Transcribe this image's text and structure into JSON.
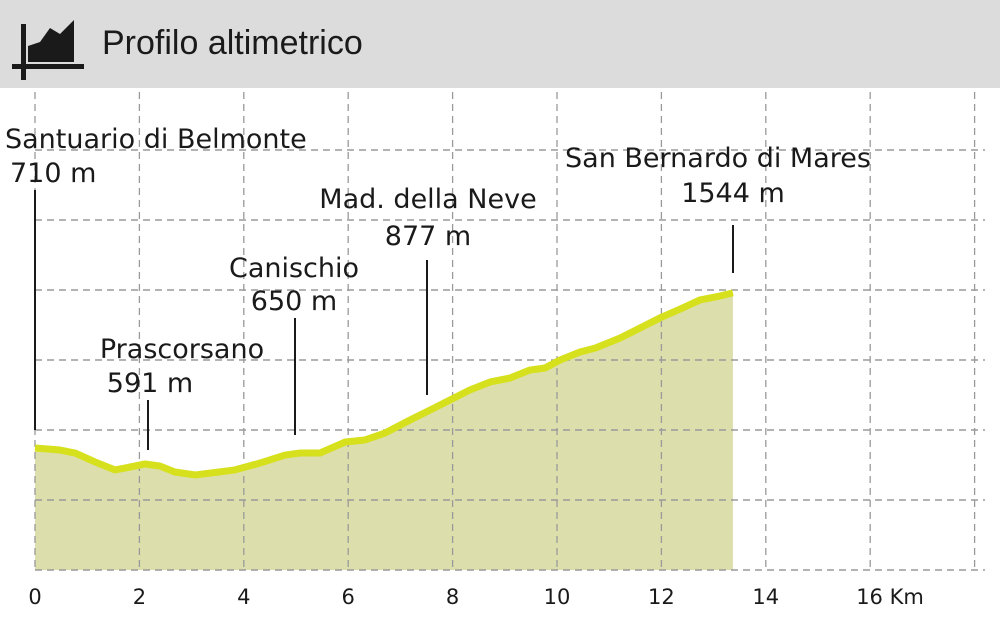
{
  "header": {
    "title": "Profilo altimetrico",
    "icon": "elevation-profile-icon"
  },
  "chart_data": {
    "type": "area",
    "title": "Profilo altimetrico",
    "xlabel": "",
    "ylabel": "",
    "x_unit": "Km",
    "xlim": [
      0,
      18
    ],
    "ylim": [
      54,
      2600
    ],
    "grid": true,
    "x_ticks": [
      0,
      2,
      4,
      6,
      8,
      10,
      12,
      14,
      16
    ],
    "x_tick_labels": [
      "0",
      "2",
      "4",
      "6",
      "8",
      "10",
      "12",
      "14",
      "16 Km"
    ],
    "line_color": "#d6e01c",
    "fill_color": "#dcdeab",
    "profile": [
      [
        0,
        710
      ],
      [
        0.48,
        699
      ],
      [
        0.77,
        683
      ],
      [
        1.15,
        635
      ],
      [
        1.53,
        592
      ],
      [
        1.72,
        602
      ],
      [
        2.11,
        624
      ],
      [
        2.39,
        613
      ],
      [
        2.68,
        581
      ],
      [
        3.07,
        565
      ],
      [
        3.35,
        575
      ],
      [
        3.83,
        592
      ],
      [
        4.31,
        629
      ],
      [
        4.79,
        672
      ],
      [
        5.08,
        683
      ],
      [
        5.46,
        683
      ],
      [
        5.94,
        742
      ],
      [
        6.32,
        753
      ],
      [
        6.7,
        790
      ],
      [
        7.18,
        860
      ],
      [
        7.57,
        914
      ],
      [
        7.95,
        968
      ],
      [
        8.33,
        1022
      ],
      [
        8.72,
        1065
      ],
      [
        9.1,
        1086
      ],
      [
        9.48,
        1129
      ],
      [
        9.77,
        1140
      ],
      [
        10.06,
        1183
      ],
      [
        10.44,
        1226
      ],
      [
        10.73,
        1247
      ],
      [
        11.21,
        1301
      ],
      [
        11.59,
        1355
      ],
      [
        11.97,
        1409
      ],
      [
        12.36,
        1457
      ],
      [
        12.74,
        1506
      ],
      [
        13.12,
        1527
      ],
      [
        13.37,
        1544
      ]
    ],
    "waypoints": [
      {
        "name": "Santuario di Belmonte",
        "elevation": "710 m",
        "km": 0
      },
      {
        "name": "Prascorsano",
        "elevation": "591 m",
        "km": 2.2
      },
      {
        "name": "Canischio",
        "elevation": "650 m",
        "km": 5.0
      },
      {
        "name": "Mad. della Neve",
        "elevation": "877 m",
        "km": 7.5
      },
      {
        "name": "San Bernardo di Mares",
        "elevation": "1544 m",
        "km": 13.37
      }
    ]
  }
}
